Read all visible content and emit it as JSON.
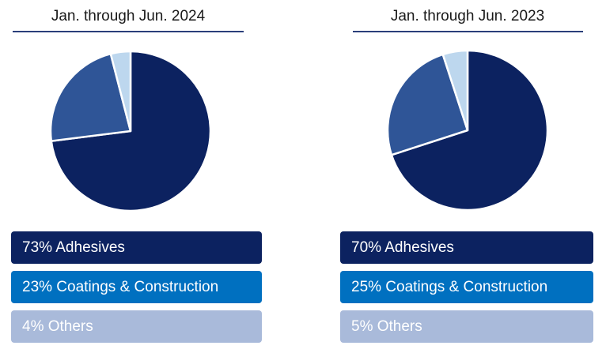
{
  "colors": {
    "adhesives": "#0c2260",
    "coatings": "#2f5597",
    "others": "#bdd7ee",
    "legend_adhesives": "#0c2260",
    "legend_coatings": "#0070c0",
    "legend_others": "#a9bada"
  },
  "chart_data": [
    {
      "type": "pie",
      "title": "Jan. through Jun. 2024",
      "categories": [
        "Adhesives",
        "Coatings & Construction",
        "Others"
      ],
      "values": [
        73,
        23,
        4
      ],
      "legend": [
        "73% Adhesives",
        "23% Coatings & Construction",
        "4% Others"
      ],
      "legend_placement": "bottom"
    },
    {
      "type": "pie",
      "title": "Jan. through Jun. 2023",
      "categories": [
        "Adhesives",
        "Coatings & Construction",
        "Others"
      ],
      "values": [
        70,
        25,
        5
      ],
      "legend": [
        "70% Adhesives",
        "25% Coatings & Construction",
        "5% Others"
      ],
      "legend_placement": "bottom"
    }
  ]
}
